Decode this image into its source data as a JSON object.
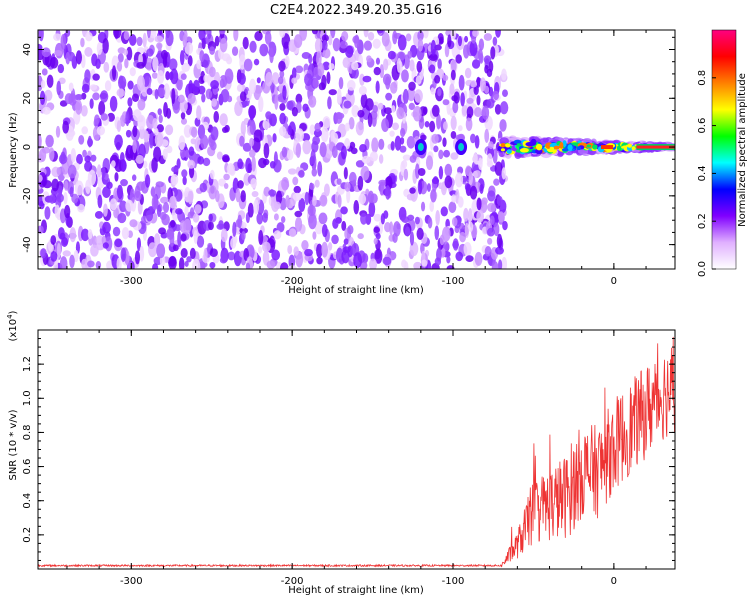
{
  "title": "C2E4.2022.349.20.35.G16",
  "chart_data": [
    {
      "type": "heatmap",
      "xlabel": "Height of straight line (km)",
      "ylabel": "Frequency (Hz)",
      "xlim": [
        -358,
        38
      ],
      "ylim": [
        -50,
        48
      ],
      "xticks": [
        -300,
        -200,
        -100,
        0
      ],
      "xtick_labels": [
        "-300",
        "-200",
        "-100",
        "0"
      ],
      "yticks": [
        -40,
        -20,
        0,
        20,
        40
      ],
      "ytick_labels": [
        "-40",
        "-20",
        "0",
        "20",
        "40"
      ],
      "noise_region": {
        "x_range": [
          -358,
          -70
        ],
        "y_range": [
          -50,
          48
        ]
      },
      "signal_band": {
        "x_range": [
          -70,
          38
        ],
        "center_frequency": 0
      },
      "isolated_signal_x": [
        -120,
        -95
      ],
      "colorbar": {
        "label": "Normalized spectral amplitude",
        "range": [
          0,
          1
        ],
        "ticks": [
          0.0,
          0.2,
          0.4,
          0.6,
          0.8
        ],
        "tick_labels": [
          "0.0",
          "0.2",
          "0.4",
          "0.6",
          "0.8"
        ],
        "colors": [
          "#ffffff",
          "#e0b0ff",
          "#8000ff",
          "#0000ff",
          "#00ffff",
          "#00ff00",
          "#ffff00",
          "#ff8000",
          "#ff0000",
          "#ff0080"
        ]
      }
    },
    {
      "type": "line",
      "xlabel": "Height of straight line (km)",
      "ylabel": "SNR (10 * v/v)",
      "scale_label": "(x10",
      "scale_exp": "4",
      "scale_close": ")",
      "xlim": [
        -358,
        38
      ],
      "ylim": [
        0.0,
        1.4
      ],
      "xticks": [
        -300,
        -200,
        -100,
        0
      ],
      "xtick_labels": [
        "-300",
        "-200",
        "-100",
        "0"
      ],
      "yticks": [
        0.2,
        0.4,
        0.6,
        0.8,
        1.0,
        1.2
      ],
      "ytick_labels": [
        "0.2",
        "0.4",
        "0.6",
        "0.8",
        "1.0",
        "1.2"
      ],
      "line_color": "#ee3333",
      "series": [
        {
          "x": [
            -358,
            -300,
            -200,
            -100,
            -70,
            -60,
            -50,
            -40,
            -30,
            -20,
            -10,
            0,
            10,
            20,
            30,
            38
          ],
          "values": [
            0.02,
            0.02,
            0.02,
            0.02,
            0.02,
            0.15,
            0.35,
            0.4,
            0.45,
            0.6,
            0.6,
            0.75,
            0.85,
            0.95,
            1.05,
            1.1
          ]
        }
      ]
    }
  ]
}
